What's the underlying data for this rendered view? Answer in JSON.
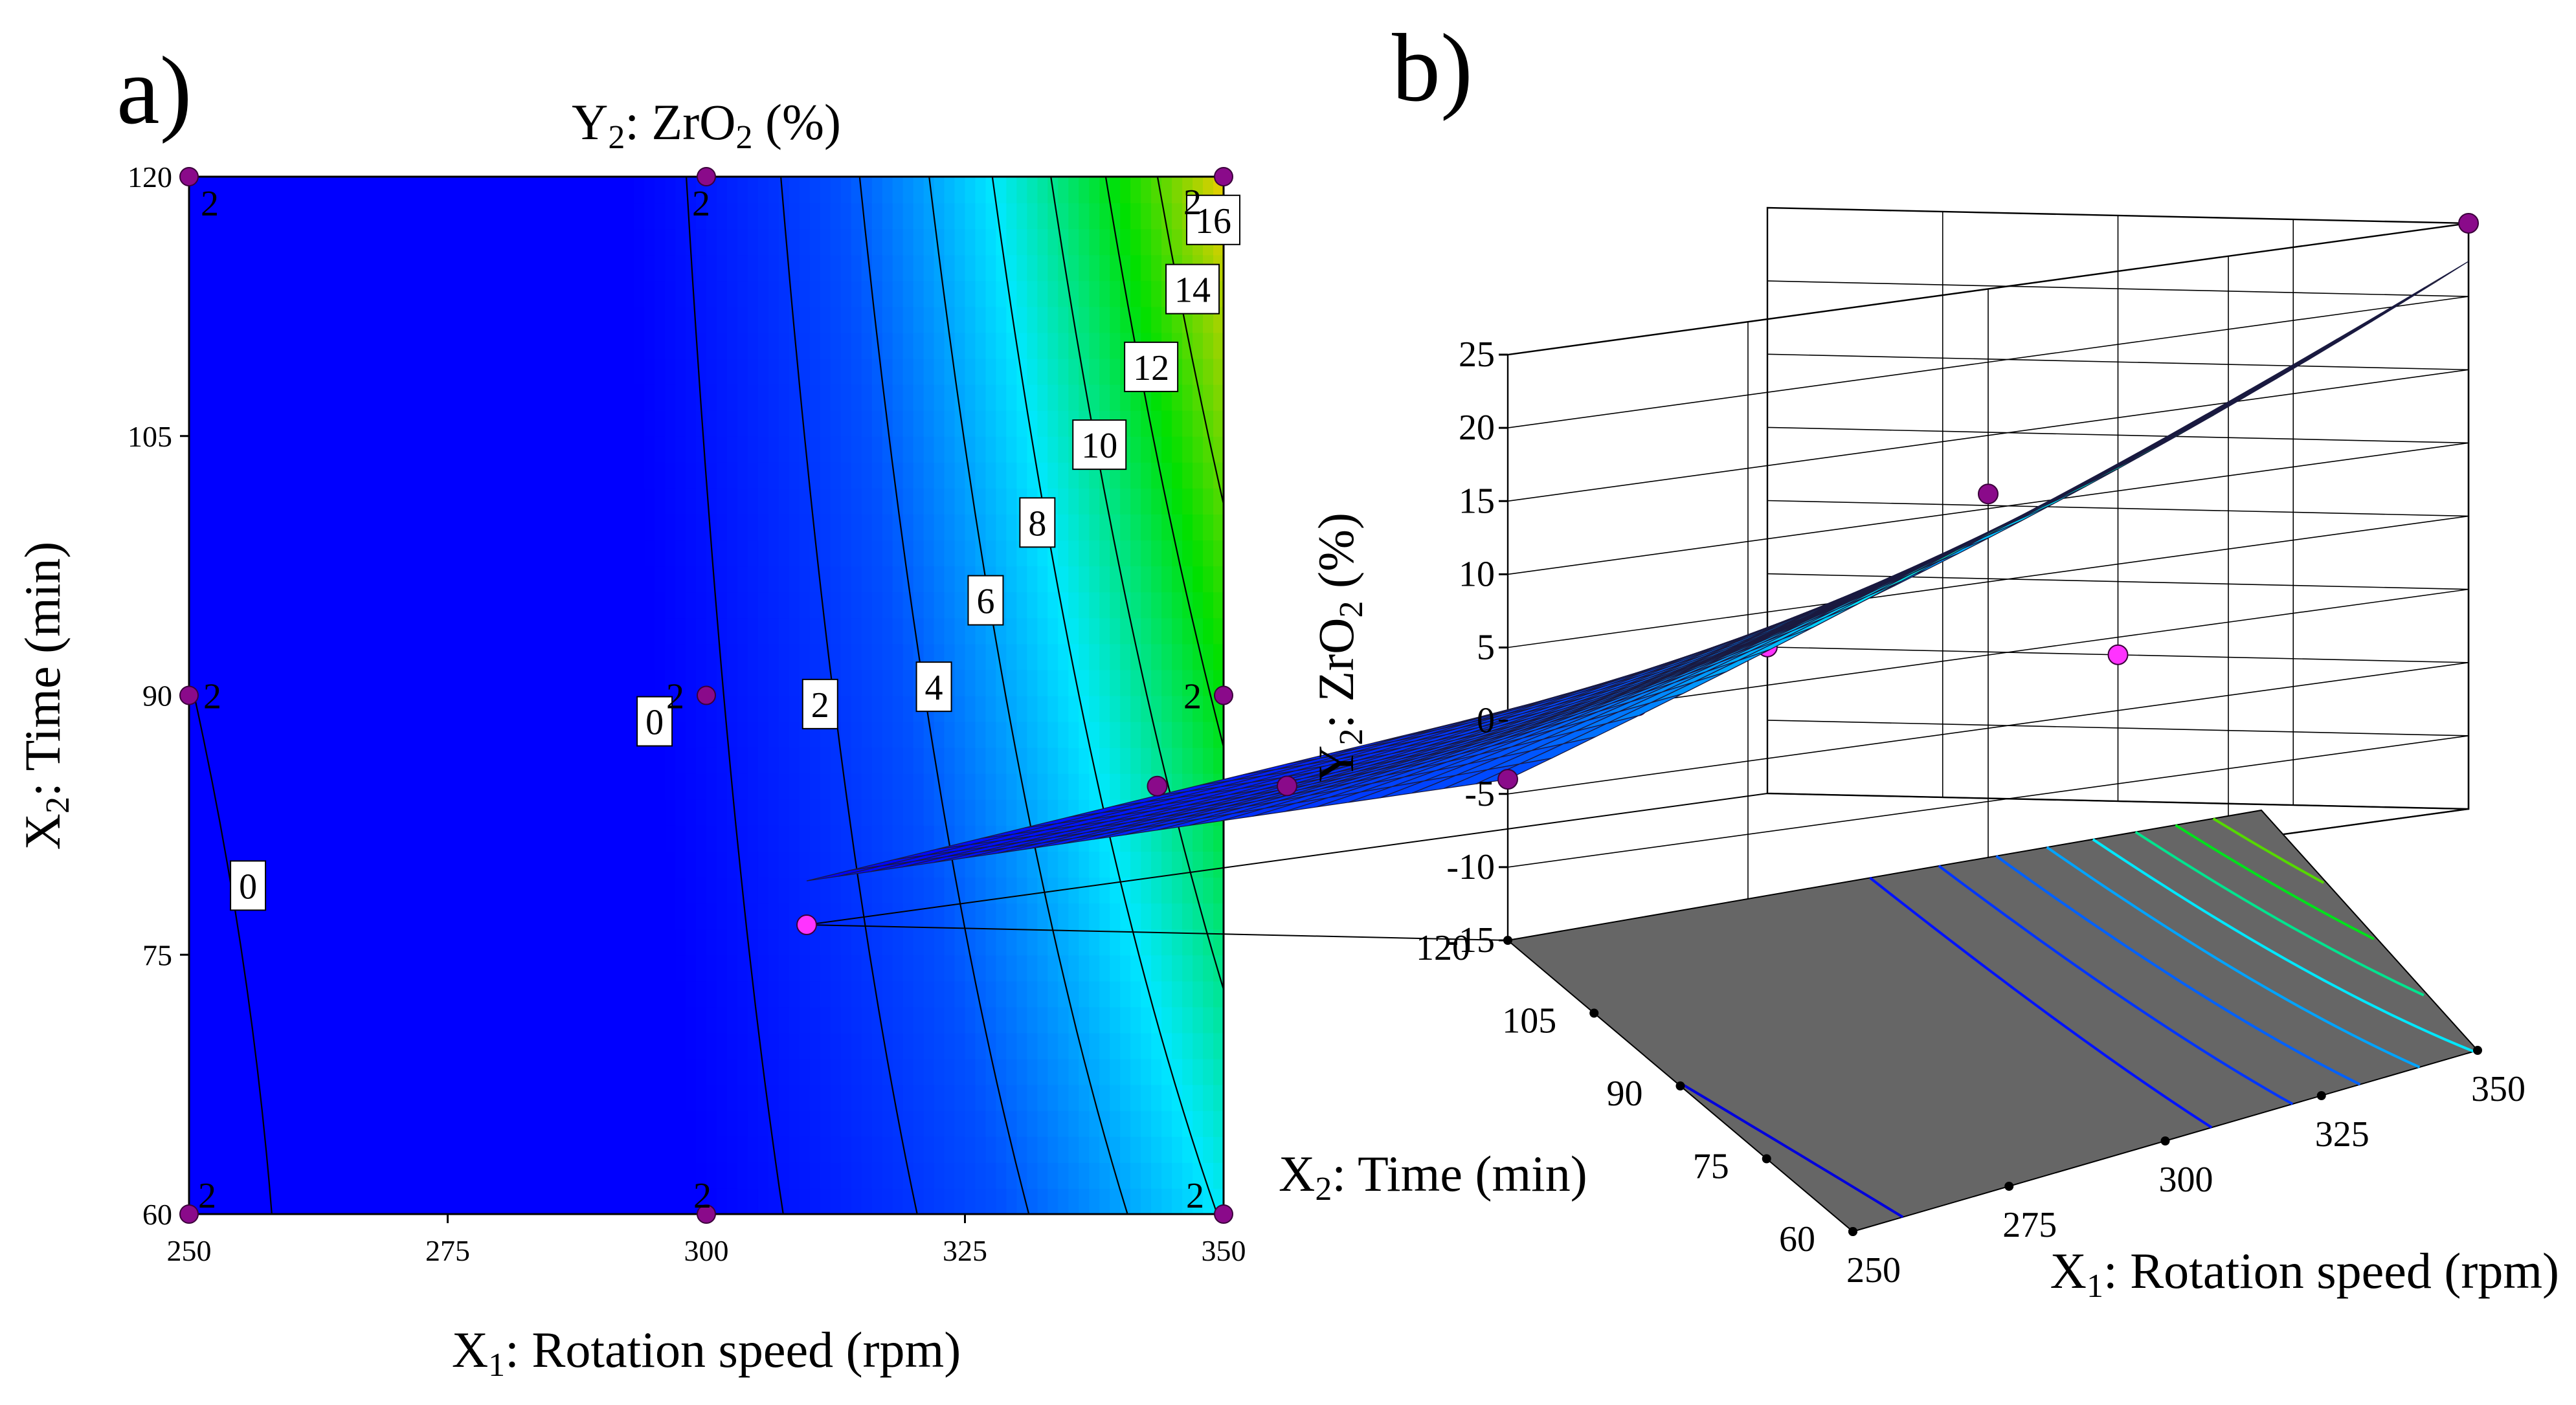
{
  "chart_data": [
    {
      "panel": "a)",
      "type": "contour",
      "title": "Y2: ZrO2 (%)",
      "title_parts": [
        "Y",
        "2",
        ": ZrO",
        "2",
        " (%)"
      ],
      "xlabel": "X1: Rotation speed (rpm)",
      "xlabel_parts": [
        "X",
        "1",
        ": Rotation speed (rpm)"
      ],
      "ylabel": "X2: Time (min)",
      "ylabel_parts": [
        "X",
        "2",
        ": Time (min)"
      ],
      "xlim": [
        250,
        350
      ],
      "ylim": [
        60,
        120
      ],
      "xticks": [
        "250",
        "275",
        "300",
        "325",
        "350"
      ],
      "yticks": [
        "60",
        "75",
        "90",
        "105",
        "120"
      ],
      "contour_levels": [
        0,
        2,
        4,
        6,
        8,
        10,
        12,
        14,
        16
      ],
      "contour_labels": [
        "0",
        "0",
        "2",
        "4",
        "6",
        "8",
        "10",
        "12",
        "14",
        "16"
      ],
      "design_points": [
        {
          "x": 250,
          "y": 120,
          "label": "2"
        },
        {
          "x": 300,
          "y": 120,
          "label": "2"
        },
        {
          "x": 350,
          "y": 120,
          "label": "2"
        },
        {
          "x": 250,
          "y": 90,
          "label": "2"
        },
        {
          "x": 300,
          "y": 90,
          "label": "2"
        },
        {
          "x": 350,
          "y": 90,
          "label": "2"
        },
        {
          "x": 250,
          "y": 60,
          "label": "2"
        },
        {
          "x": 300,
          "y": 60,
          "label": "2"
        },
        {
          "x": 350,
          "y": 60,
          "label": "2"
        }
      ],
      "colormap": [
        "#0000ff",
        "#0050ff",
        "#00e8ff",
        "#00e000",
        "#ffcc00"
      ]
    },
    {
      "panel": "b)",
      "type": "surface3d",
      "zlabel": "Y2: ZrO2 (%)",
      "zlabel_parts": [
        "Y",
        "2",
        ": ZrO",
        "2",
        " (%)"
      ],
      "xlabel": "X1: Rotation speed (rpm)",
      "xlabel_parts": [
        "X",
        "1",
        ": Rotation speed (rpm)"
      ],
      "ylabel": "X2: Time (min)",
      "ylabel_parts": [
        "X",
        "2",
        ": Time (min)"
      ],
      "xlim": [
        250,
        350
      ],
      "ylim": [
        60,
        120
      ],
      "zlim": [
        -15,
        25
      ],
      "xticks": [
        "250",
        "275",
        "300",
        "325",
        "350"
      ],
      "yticks": [
        "60",
        "75",
        "90",
        "105",
        "120"
      ],
      "zticks": [
        "-15",
        "-10",
        "-5",
        "0",
        "5",
        "10",
        "15",
        "20",
        "25"
      ],
      "corner_values": {
        "x250_y60": -12,
        "x350_y60": -5,
        "x250_y120": -4,
        "x350_y120": 20
      },
      "design_points": [
        {
          "x": 350,
          "y": 120,
          "z": 25,
          "above": true
        },
        {
          "x": 300,
          "y": 120,
          "z": 11,
          "above": true
        },
        {
          "x": 250,
          "y": 120,
          "z": -4,
          "above": true
        },
        {
          "x": 350,
          "y": 90,
          "z": -5,
          "above": false
        },
        {
          "x": 300,
          "y": 90,
          "z": -4,
          "above": false
        },
        {
          "x": 250,
          "y": 90,
          "z": -5,
          "above": true
        },
        {
          "x": 350,
          "y": 60,
          "z": -5,
          "above": false
        },
        {
          "x": 300,
          "y": 60,
          "z": -10,
          "above": true
        },
        {
          "x": 250,
          "y": 60,
          "z": -15,
          "above": false
        }
      ]
    }
  ]
}
